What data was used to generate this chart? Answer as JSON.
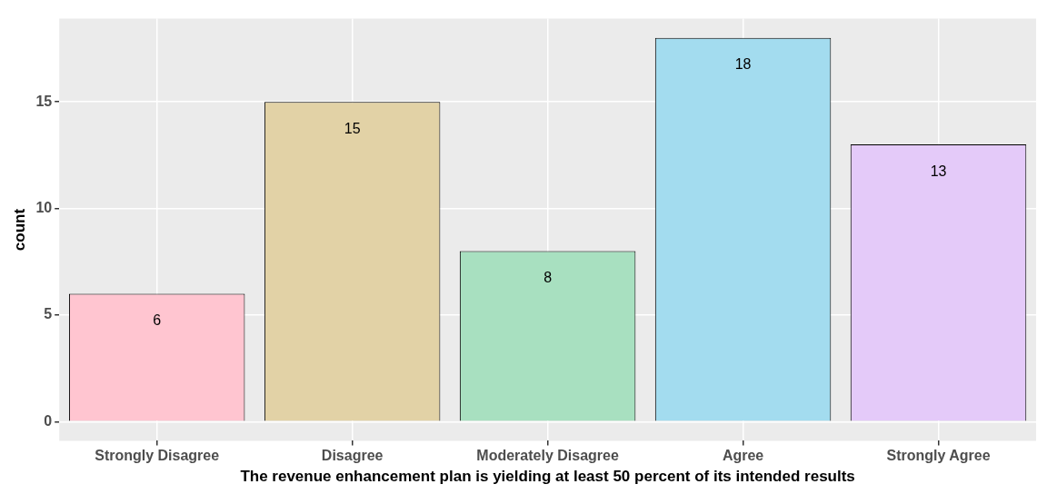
{
  "chart_data": {
    "type": "bar",
    "xlabel": "The revenue enhancement plan is yielding at least 50 percent of its intended results",
    "ylabel": "count",
    "categories": [
      "Strongly Disagree",
      "Disagree",
      "Moderately Disagree",
      "Agree",
      "Strongly Agree"
    ],
    "values": [
      6,
      15,
      8,
      18,
      13
    ],
    "colors": [
      "#ffc5d0",
      "#e2d2a6",
      "#a8e0c0",
      "#a3dcef",
      "#e4caf9"
    ],
    "ylim": [
      -0.9,
      18.9
    ],
    "yticks": [
      0,
      5,
      10,
      15
    ],
    "grid": true,
    "data_labels": true
  }
}
